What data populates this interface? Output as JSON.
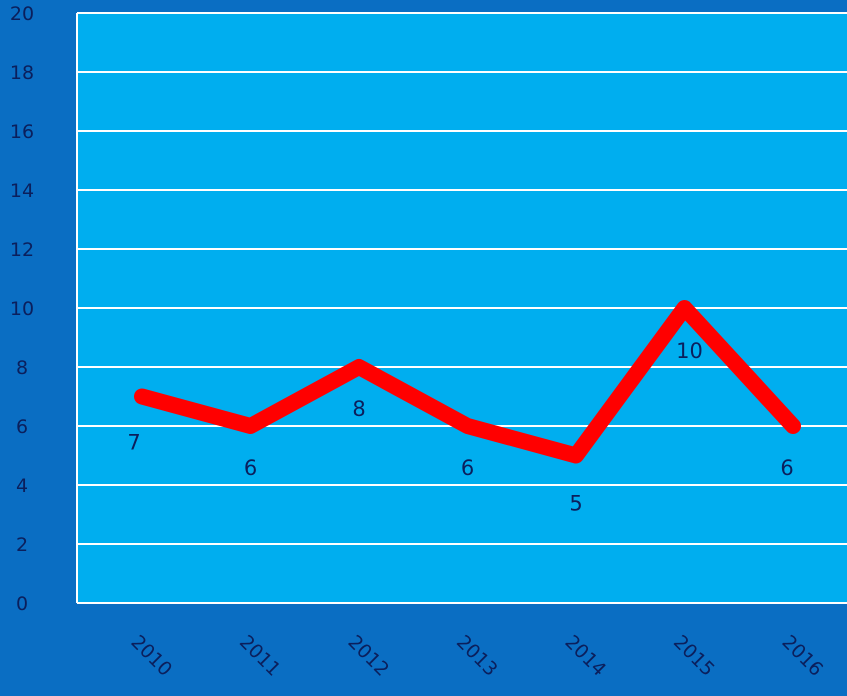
{
  "chart_data": {
    "type": "line",
    "categories": [
      "2010",
      "2011",
      "2012",
      "2013",
      "2014",
      "2015",
      "2016"
    ],
    "series": [
      {
        "values": [
          7,
          6,
          8,
          6,
          5,
          10,
          6
        ]
      }
    ],
    "data_labels": [
      "7",
      "6",
      "8",
      "6",
      "5",
      "10",
      "6"
    ],
    "y_ticks": [
      "0",
      "2",
      "4",
      "6",
      "8",
      "10",
      "12",
      "14",
      "16",
      "18",
      "20"
    ],
    "ylim": [
      0,
      20
    ],
    "grid": true,
    "legend": "none",
    "colors": {
      "page_background": "#0a6ec3",
      "plot_background": "#00aeef",
      "gridline": "#ffffff",
      "line": "#ff0000",
      "text": "#0b1f5c"
    }
  }
}
